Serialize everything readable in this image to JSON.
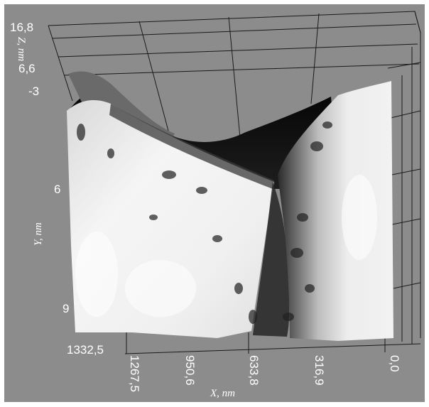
{
  "axes": {
    "z": {
      "label": "Z, nm",
      "ticks": [
        "16,8",
        "6,6",
        "-3"
      ]
    },
    "y": {
      "label": "Y, nm",
      "ticks": [
        "6",
        "9"
      ]
    },
    "x": {
      "label": "X, nm",
      "ticks": [
        "1332,5",
        "1267,5",
        "950,6",
        "633,8",
        "316,9",
        "0,0"
      ]
    }
  },
  "colors": {
    "background": "#8c8c8c",
    "grid": "#1a1a1a",
    "surface_light": "#f2f2f2",
    "surface_dark": "#0d0d0d"
  }
}
